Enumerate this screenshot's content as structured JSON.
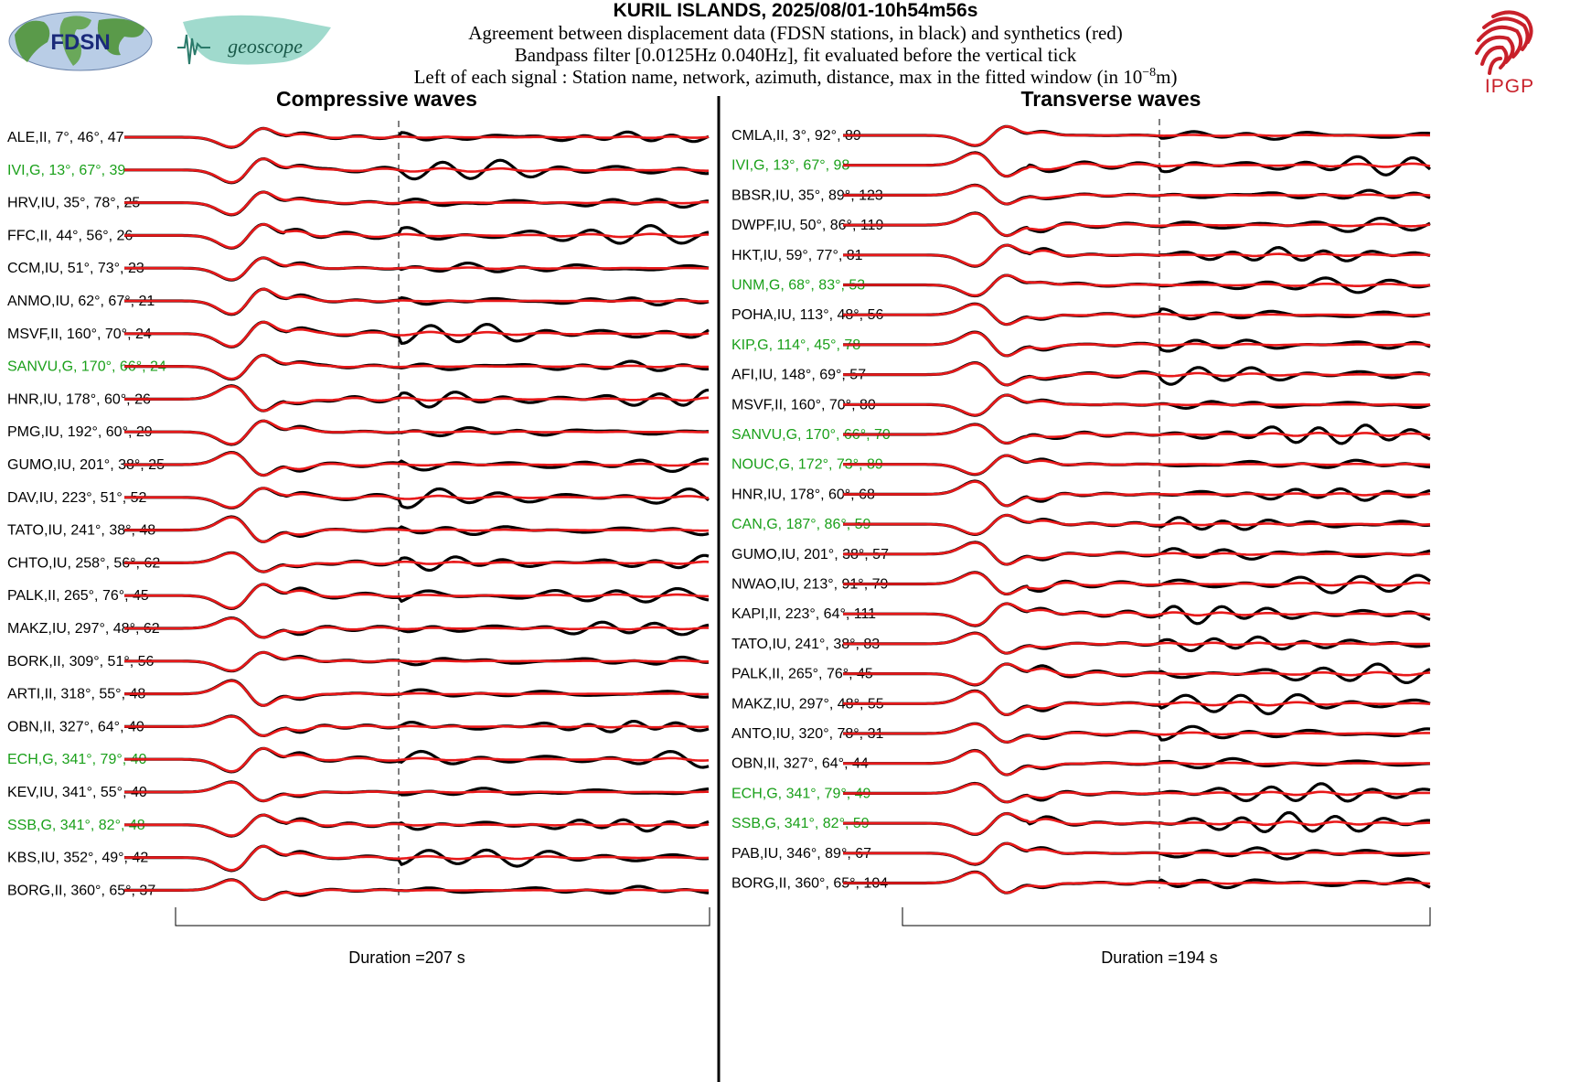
{
  "header": {
    "title": "KURIL ISLANDS, 2025/08/01-10h54m56s",
    "line1": "Agreement between displacement data (FDSN stations, in black) and synthetics (red)",
    "line2": "Bandpass filter [0.0125Hz 0.040Hz], fit evaluated before the vertical tick",
    "line3_pre": "Left of each signal : Station name, network, azimuth, distance, max in the fitted window (in 10",
    "line3_exp": "−8",
    "line3_post": "m)"
  },
  "logos": {
    "fdsn": "FDSN",
    "geoscope": "geoscope",
    "ipgp": "IPGP"
  },
  "colors": {
    "data": "#000000",
    "synthetic": "#e8191a",
    "highlight": "#1aa01a"
  },
  "chart_data": [
    {
      "type": "line",
      "title": "Compressive waves",
      "duration_label": "Duration =207 s",
      "series": [
        {
          "name": "data",
          "color": "#000000"
        },
        {
          "name": "synthetics",
          "color": "#e8191a"
        }
      ],
      "stations": [
        {
          "station": "ALE",
          "network": "II",
          "azimuth": 7,
          "distance": 46,
          "max": 47,
          "highlight": false
        },
        {
          "station": "IVI",
          "network": "G",
          "azimuth": 13,
          "distance": 67,
          "max": 39,
          "highlight": true
        },
        {
          "station": "HRV",
          "network": "IU",
          "azimuth": 35,
          "distance": 78,
          "max": 25,
          "highlight": false
        },
        {
          "station": "FFC",
          "network": "II",
          "azimuth": 44,
          "distance": 56,
          "max": 26,
          "highlight": false
        },
        {
          "station": "CCM",
          "network": "IU",
          "azimuth": 51,
          "distance": 73,
          "max": 23,
          "highlight": false
        },
        {
          "station": "ANMO",
          "network": "IU",
          "azimuth": 62,
          "distance": 67,
          "max": 21,
          "highlight": false
        },
        {
          "station": "MSVF",
          "network": "II",
          "azimuth": 160,
          "distance": 70,
          "max": 24,
          "highlight": false
        },
        {
          "station": "SANVU",
          "network": "G",
          "azimuth": 170,
          "distance": 66,
          "max": 24,
          "highlight": true
        },
        {
          "station": "HNR",
          "network": "IU",
          "azimuth": 178,
          "distance": 60,
          "max": 26,
          "highlight": false
        },
        {
          "station": "PMG",
          "network": "IU",
          "azimuth": 192,
          "distance": 60,
          "max": 29,
          "highlight": false
        },
        {
          "station": "GUMO",
          "network": "IU",
          "azimuth": 201,
          "distance": 38,
          "max": 25,
          "highlight": false
        },
        {
          "station": "DAV",
          "network": "IU",
          "azimuth": 223,
          "distance": 51,
          "max": 52,
          "highlight": false
        },
        {
          "station": "TATO",
          "network": "IU",
          "azimuth": 241,
          "distance": 38,
          "max": 48,
          "highlight": false
        },
        {
          "station": "CHTO",
          "network": "IU",
          "azimuth": 258,
          "distance": 56,
          "max": 62,
          "highlight": false
        },
        {
          "station": "PALK",
          "network": "II",
          "azimuth": 265,
          "distance": 76,
          "max": 45,
          "highlight": false
        },
        {
          "station": "MAKZ",
          "network": "IU",
          "azimuth": 297,
          "distance": 48,
          "max": 62,
          "highlight": false
        },
        {
          "station": "BORK",
          "network": "II",
          "azimuth": 309,
          "distance": 51,
          "max": 56,
          "highlight": false
        },
        {
          "station": "ARTI",
          "network": "II",
          "azimuth": 318,
          "distance": 55,
          "max": 48,
          "highlight": false
        },
        {
          "station": "OBN",
          "network": "II",
          "azimuth": 327,
          "distance": 64,
          "max": 40,
          "highlight": false
        },
        {
          "station": "ECH",
          "network": "G",
          "azimuth": 341,
          "distance": 79,
          "max": 40,
          "highlight": true
        },
        {
          "station": "KEV",
          "network": "IU",
          "azimuth": 341,
          "distance": 55,
          "max": 40,
          "highlight": false
        },
        {
          "station": "SSB",
          "network": "G",
          "azimuth": 341,
          "distance": 82,
          "max": 48,
          "highlight": true
        },
        {
          "station": "KBS",
          "network": "IU",
          "azimuth": 352,
          "distance": 49,
          "max": 42,
          "highlight": false
        },
        {
          "station": "BORG",
          "network": "II",
          "azimuth": 360,
          "distance": 65,
          "max": 37,
          "highlight": false
        }
      ]
    },
    {
      "type": "line",
      "title": "Transverse waves",
      "duration_label": "Duration =194 s",
      "series": [
        {
          "name": "data",
          "color": "#000000"
        },
        {
          "name": "synthetics",
          "color": "#e8191a"
        }
      ],
      "stations": [
        {
          "station": "CMLA",
          "network": "II",
          "azimuth": 3,
          "distance": 92,
          "max": 89,
          "highlight": false
        },
        {
          "station": "IVI",
          "network": "G",
          "azimuth": 13,
          "distance": 67,
          "max": 98,
          "highlight": true
        },
        {
          "station": "BBSR",
          "network": "IU",
          "azimuth": 35,
          "distance": 89,
          "max": 123,
          "highlight": false
        },
        {
          "station": "DWPF",
          "network": "IU",
          "azimuth": 50,
          "distance": 86,
          "max": 119,
          "highlight": false
        },
        {
          "station": "HKT",
          "network": "IU",
          "azimuth": 59,
          "distance": 77,
          "max": 81,
          "highlight": false
        },
        {
          "station": "UNM",
          "network": "G",
          "azimuth": 68,
          "distance": 83,
          "max": 53,
          "highlight": true
        },
        {
          "station": "POHA",
          "network": "IU",
          "azimuth": 113,
          "distance": 48,
          "max": 56,
          "highlight": false
        },
        {
          "station": "KIP",
          "network": "G",
          "azimuth": 114,
          "distance": 45,
          "max": 78,
          "highlight": true
        },
        {
          "station": "AFI",
          "network": "IU",
          "azimuth": 148,
          "distance": 69,
          "max": 57,
          "highlight": false
        },
        {
          "station": "MSVF",
          "network": "II",
          "azimuth": 160,
          "distance": 70,
          "max": 80,
          "highlight": false
        },
        {
          "station": "SANVU",
          "network": "G",
          "azimuth": 170,
          "distance": 66,
          "max": 70,
          "highlight": true
        },
        {
          "station": "NOUC",
          "network": "G",
          "azimuth": 172,
          "distance": 73,
          "max": 89,
          "highlight": true
        },
        {
          "station": "HNR",
          "network": "IU",
          "azimuth": 178,
          "distance": 60,
          "max": 68,
          "highlight": false
        },
        {
          "station": "CAN",
          "network": "G",
          "azimuth": 187,
          "distance": 86,
          "max": 59,
          "highlight": true
        },
        {
          "station": "GUMO",
          "network": "IU",
          "azimuth": 201,
          "distance": 38,
          "max": 57,
          "highlight": false
        },
        {
          "station": "NWAO",
          "network": "IU",
          "azimuth": 213,
          "distance": 91,
          "max": 79,
          "highlight": false
        },
        {
          "station": "KAPI",
          "network": "II",
          "azimuth": 223,
          "distance": 64,
          "max": 111,
          "highlight": false
        },
        {
          "station": "TATO",
          "network": "IU",
          "azimuth": 241,
          "distance": 38,
          "max": 83,
          "highlight": false
        },
        {
          "station": "PALK",
          "network": "II",
          "azimuth": 265,
          "distance": 76,
          "max": 45,
          "highlight": false
        },
        {
          "station": "MAKZ",
          "network": "IU",
          "azimuth": 297,
          "distance": 48,
          "max": 55,
          "highlight": false
        },
        {
          "station": "ANTO",
          "network": "IU",
          "azimuth": 320,
          "distance": 78,
          "max": 31,
          "highlight": false
        },
        {
          "station": "OBN",
          "network": "II",
          "azimuth": 327,
          "distance": 64,
          "max": 44,
          "highlight": false
        },
        {
          "station": "ECH",
          "network": "G",
          "azimuth": 341,
          "distance": 79,
          "max": 49,
          "highlight": true
        },
        {
          "station": "SSB",
          "network": "G",
          "azimuth": 341,
          "distance": 82,
          "max": 59,
          "highlight": true
        },
        {
          "station": "PAB",
          "network": "IU",
          "azimuth": 346,
          "distance": 89,
          "max": 67,
          "highlight": false
        },
        {
          "station": "BORG",
          "network": "II",
          "azimuth": 360,
          "distance": 65,
          "max": 104,
          "highlight": false
        }
      ]
    }
  ]
}
